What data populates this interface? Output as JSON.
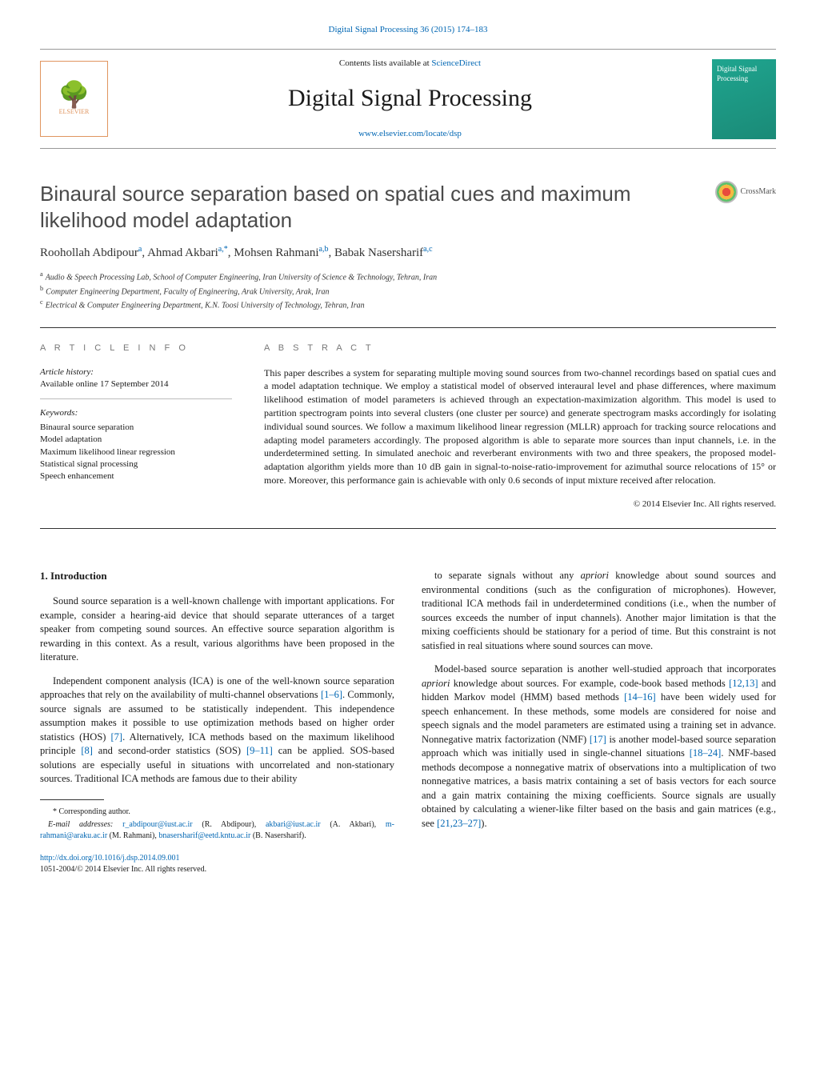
{
  "top_citation_journal": "Digital Signal Processing 36 (2015) 174–183",
  "header": {
    "contents_prefix": "Contents lists available at ",
    "contents_link": "ScienceDirect",
    "journal_name": "Digital Signal Processing",
    "journal_url": "www.elsevier.com/locate/dsp",
    "publisher": "ELSEVIER",
    "cover_text": "Digital Signal Processing"
  },
  "paper": {
    "title": "Binaural source separation based on spatial cues and maximum likelihood model adaptation",
    "crossmark": "CrossMark",
    "authors_html": "Roohollah Abdipour",
    "author_list": [
      {
        "name": "Roohollah Abdipour",
        "marks": "a"
      },
      {
        "name": "Ahmad Akbari",
        "marks": "a,*"
      },
      {
        "name": "Mohsen Rahmani",
        "marks": "a,b"
      },
      {
        "name": "Babak Nasersharif",
        "marks": "a,c"
      }
    ],
    "affiliations": [
      {
        "mark": "a",
        "text": "Audio & Speech Processing Lab, School of Computer Engineering, Iran University of Science & Technology, Tehran, Iran"
      },
      {
        "mark": "b",
        "text": "Computer Engineering Department, Faculty of Engineering, Arak University, Arak, Iran"
      },
      {
        "mark": "c",
        "text": "Electrical & Computer Engineering Department, K.N. Toosi University of Technology, Tehran, Iran"
      }
    ]
  },
  "article_info": {
    "heading": "A R T I C L E   I N F O",
    "history_label": "Article history:",
    "history_value": "Available online 17 September 2014",
    "keywords_label": "Keywords:",
    "keywords": [
      "Binaural source separation",
      "Model adaptation",
      "Maximum likelihood linear regression",
      "Statistical signal processing",
      "Speech enhancement"
    ]
  },
  "abstract": {
    "heading": "A B S T R A C T",
    "text": "This paper describes a system for separating multiple moving sound sources from two-channel recordings based on spatial cues and a model adaptation technique. We employ a statistical model of observed interaural level and phase differences, where maximum likelihood estimation of model parameters is achieved through an expectation-maximization algorithm. This model is used to partition spectrogram points into several clusters (one cluster per source) and generate spectrogram masks accordingly for isolating individual sound sources. We follow a maximum likelihood linear regression (MLLR) approach for tracking source relocations and adapting model parameters accordingly. The proposed algorithm is able to separate more sources than input channels, i.e. in the underdetermined setting. In simulated anechoic and reverberant environments with two and three speakers, the proposed model-adaptation algorithm yields more than 10 dB gain in signal-to-noise-ratio-improvement for azimuthal source relocations of 15° or more. Moreover, this performance gain is achievable with only 0.6 seconds of input mixture received after relocation.",
    "copyright": "© 2014 Elsevier Inc. All rights reserved."
  },
  "body": {
    "section_number": "1.",
    "section_title": "Introduction",
    "col1_paras": [
      "Sound source separation is a well-known challenge with important applications. For example, consider a hearing-aid device that should separate utterances of a target speaker from competing sound sources. An effective source separation algorithm is rewarding in this context. As a result, various algorithms have been proposed in the literature.",
      "Independent component analysis (ICA) is one of the well-known source separation approaches that rely on the availability of multi-channel observations [1–6]. Commonly, source signals are assumed to be statistically independent. This independence assumption makes it possible to use optimization methods based on higher order statistics (HOS) [7]. Alternatively, ICA methods based on the maximum likelihood principle [8] and second-order statistics (SOS) [9–11] can be applied. SOS-based solutions are especially useful in situations with uncorrelated and non-stationary sources. Traditional ICA methods are famous due to their ability"
    ],
    "col2_paras": [
      "to separate signals without any apriori knowledge about sound sources and environmental conditions (such as the configuration of microphones). However, traditional ICA methods fail in underdetermined conditions (i.e., when the number of sources exceeds the number of input channels). Another major limitation is that the mixing coefficients should be stationary for a period of time. But this constraint is not satisfied in real situations where sound sources can move.",
      "Model-based source separation is another well-studied approach that incorporates apriori knowledge about sources. For example, code-book based methods [12,13] and hidden Markov model (HMM) based methods [14–16] have been widely used for speech enhancement. In these methods, some models are considered for noise and speech signals and the model parameters are estimated using a training set in advance. Nonnegative matrix factorization (NMF) [17] is another model-based source separation approach which was initially used in single-channel situations [18–24]. NMF-based methods decompose a nonnegative matrix of observations into a multiplication of two nonnegative matrices, a basis matrix containing a set of basis vectors for each source and a gain matrix containing the mixing coefficients. Source signals are usually obtained by calculating a wiener-like filter based on the basis and gain matrices (e.g., see [21,23–27])."
    ]
  },
  "footnotes": {
    "corresponding": "* Corresponding author.",
    "email_label": "E-mail addresses:",
    "emails": [
      {
        "addr": "r_abdipour@iust.ac.ir",
        "who": "(R. Abdipour)"
      },
      {
        "addr": "akbari@iust.ac.ir",
        "who": "(A. Akbari)"
      },
      {
        "addr": "m-rahmani@araku.ac.ir",
        "who": "(M. Rahmani)"
      },
      {
        "addr": "bnasersharif@eetd.kntu.ac.ir",
        "who": "(B. Nasersharif)"
      }
    ],
    "doi": "http://dx.doi.org/10.1016/j.dsp.2014.09.001",
    "issn_copyright": "1051-2004/© 2014 Elsevier Inc. All rights reserved."
  },
  "cite_refs": {
    "r1_6": "[1–6]",
    "r7": "[7]",
    "r8": "[8]",
    "r9_11": "[9–11]",
    "r12_13": "[12,13]",
    "r14_16": "[14–16]",
    "r17": "[17]",
    "r18_24": "[18–24]",
    "r21_23_27": "[21,23–27]"
  },
  "colors": {
    "link": "#0066b3",
    "cover_bg": "#1fa58f",
    "logo_border": "#e0955f"
  }
}
